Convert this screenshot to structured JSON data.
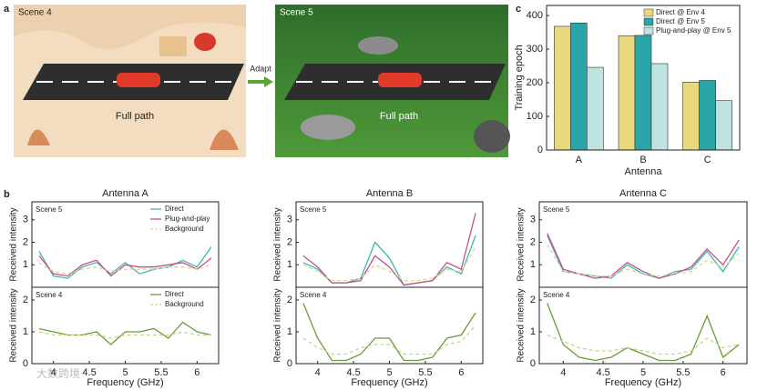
{
  "figure": {
    "panel_a": "a",
    "panel_b": "b",
    "panel_c": "c",
    "scene_left": "Scene 4",
    "scene_right": "Scene 5",
    "path_left": "Full path",
    "path_right": "Full path",
    "adapt": "Adapt",
    "watermark": "大数跨境"
  },
  "chart_data": [
    {
      "type": "bar",
      "categories": [
        "A",
        "B",
        "C"
      ],
      "xlabel": "Antenna",
      "ylabel": "Training epoch",
      "ylim": [
        0,
        430
      ],
      "yticks": [
        0,
        100,
        200,
        300,
        400
      ],
      "legend": "upper right",
      "series": [
        {
          "name": "Direct @ Env 4",
          "color": "#e9d97c",
          "values": [
            368,
            340,
            202
          ]
        },
        {
          "name": "Direct @ Env 5",
          "color": "#2ba6a8",
          "values": [
            378,
            341,
            207
          ]
        },
        {
          "name": "Plug-and-play @ Env 5",
          "color": "#bfe3e1",
          "values": [
            246,
            257,
            147
          ]
        }
      ]
    },
    {
      "type": "line",
      "title": "Antenna A",
      "scene": "Scene 5",
      "ylabel": "Received intensity",
      "legend": "upper right",
      "x": [
        3.8,
        4.0,
        4.2,
        4.4,
        4.6,
        4.8,
        5.0,
        5.2,
        5.4,
        5.6,
        5.8,
        6.0,
        6.2
      ],
      "xlim": [
        3.7,
        6.3
      ],
      "ylim": [
        0,
        3.8
      ],
      "yticks": [
        1,
        2,
        3
      ],
      "series": [
        {
          "name": "Direct",
          "color": "#3fb6b0",
          "values": [
            1.6,
            0.5,
            0.4,
            0.9,
            1.1,
            0.6,
            1.1,
            0.6,
            0.8,
            0.9,
            1.2,
            0.9,
            1.8
          ]
        },
        {
          "name": "Plug-and-play",
          "color": "#c2508e",
          "values": [
            1.4,
            0.6,
            0.5,
            1.0,
            1.2,
            0.5,
            1.0,
            0.9,
            0.9,
            1.0,
            1.1,
            0.8,
            1.3
          ]
        },
        {
          "name": "Background",
          "color": "#d8d98a",
          "style": "dashed",
          "values": [
            1.1,
            0.7,
            0.6,
            0.8,
            0.9,
            0.7,
            0.8,
            0.8,
            0.8,
            0.9,
            0.9,
            0.8,
            1.0
          ]
        }
      ]
    },
    {
      "type": "line",
      "scene": "Scene 4",
      "ylabel": "Received intensity",
      "xlabel": "Frequency (GHz)",
      "legend": "upper right",
      "x": [
        3.8,
        4.0,
        4.2,
        4.4,
        4.6,
        4.8,
        5.0,
        5.2,
        5.4,
        5.6,
        5.8,
        6.0,
        6.2
      ],
      "xlim": [
        3.7,
        6.3
      ],
      "ylim": [
        0,
        2.4
      ],
      "yticks": [
        0,
        1,
        2
      ],
      "xticks": [
        4,
        4.5,
        5,
        5.5,
        6
      ],
      "series": [
        {
          "name": "Direct",
          "color": "#6b9a3a",
          "values": [
            1.1,
            1.0,
            0.9,
            0.9,
            1.0,
            0.6,
            1.0,
            1.0,
            1.1,
            0.8,
            1.3,
            1.0,
            0.9
          ]
        },
        {
          "name": "Background",
          "color": "#c9d48a",
          "style": "dashed",
          "values": [
            1.0,
            0.9,
            0.9,
            0.9,
            0.9,
            0.8,
            0.9,
            0.9,
            0.9,
            0.9,
            1.0,
            0.9,
            0.9
          ]
        }
      ]
    },
    {
      "type": "line",
      "title": "Antenna B",
      "scene": "Scene 5",
      "ylabel": "Received intensity",
      "x": [
        3.8,
        4.0,
        4.2,
        4.4,
        4.6,
        4.8,
        5.0,
        5.2,
        5.4,
        5.6,
        5.8,
        6.0,
        6.2
      ],
      "xlim": [
        3.7,
        6.3
      ],
      "ylim": [
        0,
        3.8
      ],
      "yticks": [
        1,
        2,
        3
      ],
      "series": [
        {
          "color": "#3fb6b0",
          "values": [
            1.1,
            0.8,
            0.2,
            0.2,
            0.4,
            2.0,
            1.3,
            0.1,
            0.2,
            0.3,
            0.9,
            0.6,
            2.3
          ]
        },
        {
          "color": "#c2508e",
          "values": [
            1.4,
            0.9,
            0.2,
            0.2,
            0.3,
            1.4,
            0.9,
            0.1,
            0.2,
            0.3,
            1.1,
            0.8,
            3.3
          ]
        },
        {
          "color": "#d8d98a",
          "style": "dashed",
          "values": [
            1.0,
            0.7,
            0.3,
            0.3,
            0.4,
            1.0,
            0.7,
            0.3,
            0.3,
            0.4,
            0.8,
            0.7,
            1.8
          ]
        }
      ]
    },
    {
      "type": "line",
      "scene": "Scene 4",
      "ylabel": "Received intensity",
      "xlabel": "Frequency (GHz)",
      "x": [
        3.8,
        4.0,
        4.2,
        4.4,
        4.6,
        4.8,
        5.0,
        5.2,
        5.4,
        5.6,
        5.8,
        6.0,
        6.2
      ],
      "xlim": [
        3.7,
        6.3
      ],
      "ylim": [
        0,
        2.4
      ],
      "yticks": [
        0,
        1,
        2
      ],
      "xticks": [
        4,
        4.5,
        5,
        5.5,
        6
      ],
      "series": [
        {
          "color": "#6b9a3a",
          "values": [
            1.9,
            0.8,
            0.1,
            0.1,
            0.3,
            0.8,
            0.8,
            0.1,
            0.1,
            0.2,
            0.8,
            0.9,
            1.6
          ]
        },
        {
          "color": "#c9d48a",
          "style": "dashed",
          "values": [
            0.8,
            0.5,
            0.3,
            0.3,
            0.5,
            0.6,
            0.6,
            0.3,
            0.3,
            0.3,
            0.6,
            0.7,
            1.2
          ]
        }
      ]
    },
    {
      "type": "line",
      "title": "Antenna C",
      "scene": "Scene 5",
      "ylabel": "Received intensity",
      "x": [
        3.8,
        4.0,
        4.2,
        4.4,
        4.6,
        4.8,
        5.0,
        5.2,
        5.4,
        5.6,
        5.8,
        6.0,
        6.2
      ],
      "xlim": [
        3.7,
        6.3
      ],
      "ylim": [
        0,
        3.8
      ],
      "yticks": [
        1,
        2,
        3
      ],
      "series": [
        {
          "color": "#3fb6b0",
          "values": [
            2.3,
            0.7,
            0.6,
            0.5,
            0.4,
            1.0,
            0.6,
            0.4,
            0.7,
            0.8,
            1.6,
            0.7,
            1.8
          ]
        },
        {
          "color": "#c2508e",
          "values": [
            2.4,
            0.8,
            0.6,
            0.4,
            0.5,
            1.1,
            0.7,
            0.4,
            0.6,
            0.9,
            1.7,
            1.0,
            2.1
          ]
        },
        {
          "color": "#d8d98a",
          "style": "dashed",
          "values": [
            1.9,
            0.7,
            0.6,
            0.5,
            0.5,
            0.8,
            0.6,
            0.5,
            0.6,
            0.7,
            1.2,
            0.9,
            1.5
          ]
        }
      ]
    },
    {
      "type": "line",
      "scene": "Scene 4",
      "ylabel": "Received intensity",
      "xlabel": "Frequency (GHz)",
      "x": [
        3.8,
        4.0,
        4.2,
        4.4,
        4.6,
        4.8,
        5.0,
        5.2,
        5.4,
        5.6,
        5.8,
        6.0,
        6.2
      ],
      "xlim": [
        3.7,
        6.3
      ],
      "ylim": [
        0,
        2.4
      ],
      "yticks": [
        0,
        1,
        2
      ],
      "xticks": [
        4,
        4.5,
        5,
        5.5,
        6
      ],
      "series": [
        {
          "color": "#6b9a3a",
          "values": [
            1.9,
            0.6,
            0.2,
            0.1,
            0.2,
            0.5,
            0.3,
            0.1,
            0.1,
            0.3,
            1.5,
            0.2,
            0.6
          ]
        },
        {
          "color": "#c9d48a",
          "style": "dashed",
          "values": [
            0.9,
            0.7,
            0.5,
            0.4,
            0.4,
            0.5,
            0.4,
            0.3,
            0.3,
            0.4,
            0.8,
            0.5,
            0.6
          ]
        }
      ]
    }
  ]
}
